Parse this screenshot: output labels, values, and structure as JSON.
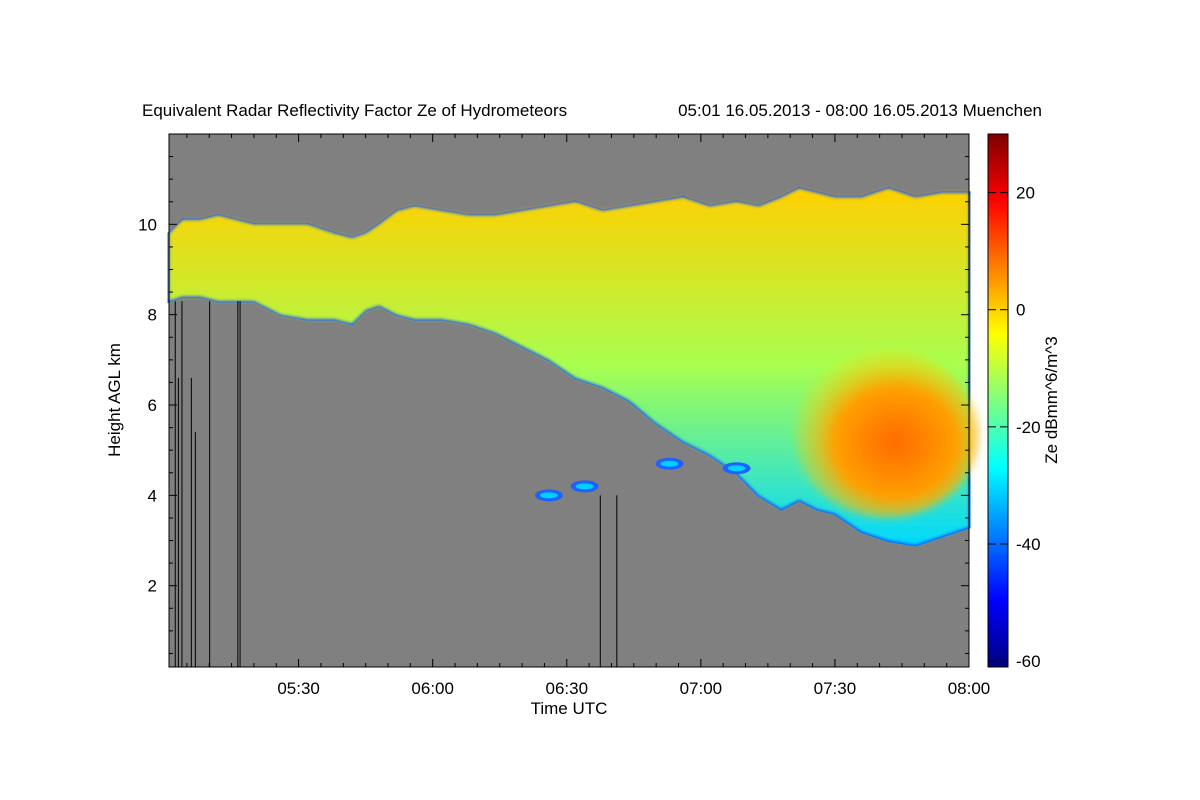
{
  "chart_data": {
    "type": "heatmap",
    "title": "Equivalent Radar Reflectivity Factor Ze of Hydrometeors",
    "period": "05:01 16.05.2013 - 08:00 16.05.2013 Muenchen",
    "xlabel": "Time UTC",
    "ylabel": "Height AGL km",
    "colorbar_label": "Ze dBmm^6/m^3",
    "x_ticks": [
      "05:30",
      "06:00",
      "06:30",
      "07:00",
      "07:30",
      "08:00"
    ],
    "x_tick_values": [
      330,
      360,
      390,
      420,
      450,
      480
    ],
    "xlim": [
      301,
      480
    ],
    "y_ticks": [
      "2",
      "4",
      "6",
      "8",
      "10"
    ],
    "y_tick_values": [
      2,
      4,
      6,
      8,
      10
    ],
    "ylim": [
      0.2,
      12
    ],
    "colorbar_ticks": [
      "20",
      "0",
      "-20",
      "-40",
      "-60"
    ],
    "colorbar_tick_values": [
      20,
      0,
      -20,
      -40,
      -60
    ],
    "colorbar_range": [
      -61,
      30
    ],
    "background_color": "#808080",
    "colormap": [
      "#00007f",
      "#0000ff",
      "#007fff",
      "#00ffff",
      "#7fff7f",
      "#ffff00",
      "#ff7f00",
      "#ff0000",
      "#7f0000"
    ],
    "echo_profile": {
      "time": [
        301,
        304,
        308,
        312,
        316,
        320,
        326,
        332,
        338,
        342,
        345,
        348,
        352,
        356,
        362,
        368,
        374,
        380,
        386,
        392,
        398,
        404,
        410,
        416,
        422,
        428,
        433,
        438,
        442,
        446,
        450,
        456,
        462,
        468,
        474,
        480
      ],
      "top_km": [
        9.8,
        10.1,
        10.1,
        10.2,
        10.1,
        10.0,
        10.0,
        10.0,
        9.8,
        9.7,
        9.8,
        10.0,
        10.3,
        10.4,
        10.3,
        10.2,
        10.2,
        10.3,
        10.4,
        10.5,
        10.3,
        10.4,
        10.5,
        10.6,
        10.4,
        10.5,
        10.4,
        10.6,
        10.8,
        10.7,
        10.6,
        10.6,
        10.8,
        10.6,
        10.7,
        10.7
      ],
      "base_km": [
        8.3,
        8.4,
        8.4,
        8.3,
        8.3,
        8.3,
        8.0,
        7.9,
        7.9,
        7.8,
        8.1,
        8.2,
        8.0,
        7.9,
        7.9,
        7.8,
        7.6,
        7.3,
        7.0,
        6.6,
        6.4,
        6.1,
        5.6,
        5.2,
        4.9,
        4.5,
        4.0,
        3.7,
        3.9,
        3.7,
        3.6,
        3.2,
        3.0,
        2.9,
        3.1,
        3.3
      ]
    },
    "precip_core": {
      "t_start": 443,
      "t_end": 480,
      "top_km": 7.2,
      "base_km": 3.5,
      "max_ze": 10
    },
    "isolated_echoes": [
      {
        "t_center": 386,
        "km_center": 4.0,
        "ze": -40
      },
      {
        "t_center": 394,
        "km_center": 4.2,
        "ze": -35
      },
      {
        "t_center": 413,
        "km_center": 4.7,
        "ze": -33
      },
      {
        "t_center": 428,
        "km_center": 4.6,
        "ze": -30
      }
    ],
    "clutter_lines": [
      {
        "t": 302.4,
        "top_km": 8.3
      },
      {
        "t": 303.1,
        "top_km": 6.6
      },
      {
        "t": 303.9,
        "top_km": 8.3
      },
      {
        "t": 306.0,
        "top_km": 6.6
      },
      {
        "t": 306.9,
        "top_km": 5.4
      },
      {
        "t": 310.1,
        "top_km": 8.3
      },
      {
        "t": 316.4,
        "top_km": 8.3
      },
      {
        "t": 316.9,
        "top_km": 8.3
      },
      {
        "t": 397.5,
        "top_km": 4.0
      },
      {
        "t": 401.2,
        "top_km": 4.0
      }
    ]
  }
}
